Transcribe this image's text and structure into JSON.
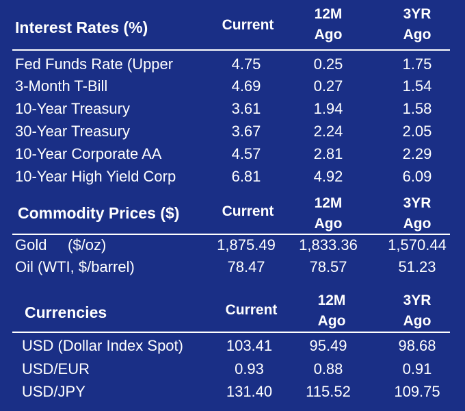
{
  "interest": {
    "title": "Interest Rates (%)",
    "col_current": "Current",
    "col_12m_line1": "12M",
    "col_12m_line2": "Ago",
    "col_3yr_line1": "3YR",
    "col_3yr_line2": "Ago",
    "rows": [
      {
        "label": "Fed Funds Rate (Upper",
        "current": "4.75",
        "m12": "0.25",
        "y3": "1.75"
      },
      {
        "label": "3-Month T-Bill",
        "current": "4.69",
        "m12": "0.27",
        "y3": "1.54"
      },
      {
        "label": "10-Year Treasury",
        "current": "3.61",
        "m12": "1.94",
        "y3": "1.58"
      },
      {
        "label": "30-Year Treasury",
        "current": "3.67",
        "m12": "2.24",
        "y3": "2.05"
      },
      {
        "label": "10-Year Corporate AA",
        "current": "4.57",
        "m12": "2.81",
        "y3": "2.29"
      },
      {
        "label": "10-Year High Yield Corp",
        "current": "6.81",
        "m12": "4.92",
        "y3": "6.09"
      }
    ]
  },
  "commodities": {
    "title": "Commodity Prices ($)",
    "col_current": "Current",
    "col_12m_line1": "12M",
    "col_12m_line2": "Ago",
    "col_3yr_line1": "3YR",
    "col_3yr_line2": "Ago",
    "rows": [
      {
        "label": "Gold     ($/oz)",
        "current": "1,875.49",
        "m12": "1,833.36",
        "y3": "1,570.44"
      },
      {
        "label": "Oil (WTI, $/barrel)",
        "current": "78.47",
        "m12": "78.57",
        "y3": "51.23"
      }
    ]
  },
  "currencies": {
    "title": "Currencies",
    "col_current": "Current",
    "col_12m_line1": "12M",
    "col_12m_line2": "Ago",
    "col_3yr_line1": "3YR",
    "col_3yr_line2": "Ago",
    "rows": [
      {
        "label": "USD (Dollar Index Spot)",
        "current": "103.41",
        "m12": "95.49",
        "y3": "98.68"
      },
      {
        "label": "USD/EUR",
        "current": "0.93",
        "m12": "0.88",
        "y3": "0.91"
      },
      {
        "label": "USD/JPY",
        "current": "131.40",
        "m12": "115.52",
        "y3": "109.75"
      }
    ]
  },
  "colors": {
    "background": "#1a2f86",
    "text": "#ffffff"
  }
}
